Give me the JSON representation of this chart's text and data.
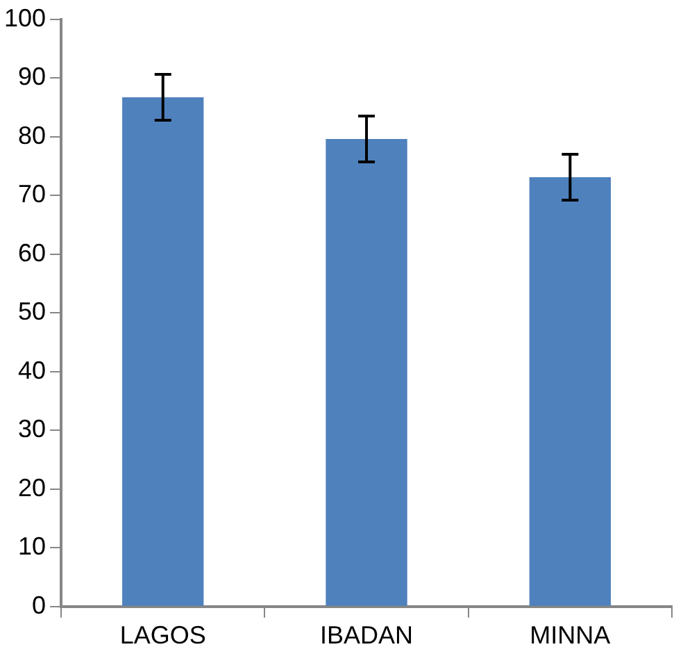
{
  "chart_data": {
    "type": "bar",
    "categories": [
      "LAGOS",
      "IBADAN",
      "MINNA"
    ],
    "values": [
      86.7,
      79.6,
      73.1
    ],
    "errors": [
      3.9,
      3.9,
      3.9
    ],
    "color": "#4f81bd",
    "ylim": [
      0,
      100
    ],
    "yticks": [
      0,
      10,
      20,
      30,
      40,
      50,
      60,
      70,
      80,
      90,
      100
    ],
    "grid": false,
    "legend": false
  }
}
